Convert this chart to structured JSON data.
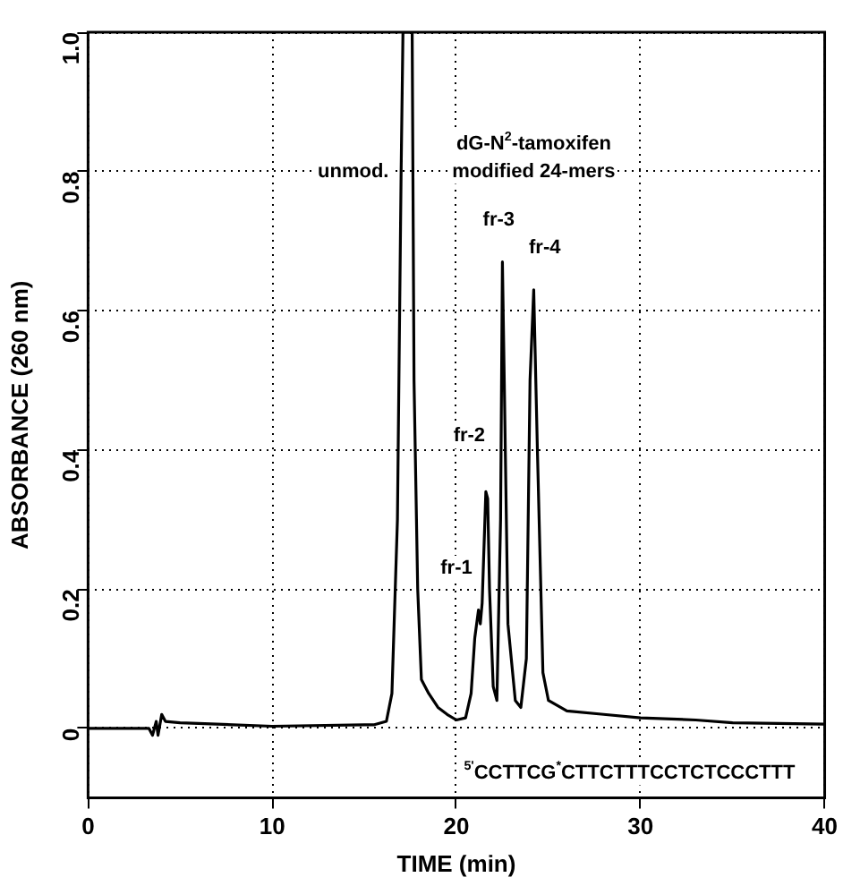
{
  "chart_data": {
    "type": "line",
    "xlabel": "TIME (min)",
    "ylabel": "ABSORBANCE (260 nm)",
    "x": [
      0,
      3.3,
      3.5,
      3.7,
      3.8,
      4.0,
      4.2,
      5,
      10,
      15,
      15.5,
      16.2,
      16.5,
      16.8,
      17.0,
      17.1,
      17.6,
      17.7,
      17.9,
      18.1,
      18.5,
      19,
      19.5,
      20,
      20.5,
      20.8,
      21.0,
      21.2,
      21.3,
      21.4,
      21.6,
      21.7,
      21.8,
      22.0,
      22.2,
      22.4,
      22.5,
      22.6,
      22.8,
      23.2,
      23.5,
      23.8,
      24.0,
      24.2,
      24.4,
      24.7,
      25,
      26,
      28,
      30,
      33,
      35,
      40
    ],
    "series": [
      {
        "color": "#000000",
        "values": [
          0,
          0,
          -0.01,
          0.01,
          -0.01,
          0.02,
          0.01,
          0.008,
          0.003,
          0.005,
          0.005,
          0.01,
          0.05,
          0.3,
          0.8,
          1.0,
          1.0,
          0.5,
          0.2,
          0.07,
          0.05,
          0.03,
          0.02,
          0.012,
          0.015,
          0.05,
          0.13,
          0.17,
          0.15,
          0.18,
          0.34,
          0.33,
          0.2,
          0.06,
          0.04,
          0.3,
          0.67,
          0.5,
          0.15,
          0.04,
          0.03,
          0.1,
          0.5,
          0.63,
          0.4,
          0.08,
          0.04,
          0.025,
          0.02,
          0.015,
          0.012,
          0.008,
          0.006
        ]
      }
    ],
    "xlim": [
      0,
      40
    ],
    "xticks": [
      0,
      10,
      20,
      30,
      40
    ],
    "ylim": [
      -0.1,
      1.0
    ],
    "yticks": [
      0,
      0.2,
      0.4,
      0.6,
      0.8,
      {
        "value": 1.0,
        "label": "1.0"
      }
    ],
    "grid": true,
    "marker": "none",
    "line_style": "solid",
    "legend": false,
    "annotations": [
      "unmod.",
      "dG-N$^{2}$-tamoxifen",
      "modified 24-mers",
      "fr-1",
      "fr-2",
      "fr-3",
      "fr-4",
      "$^{5'}$CCTTCG$^{*}$CTTCTTTCCTCTCCCTTT"
    ]
  }
}
